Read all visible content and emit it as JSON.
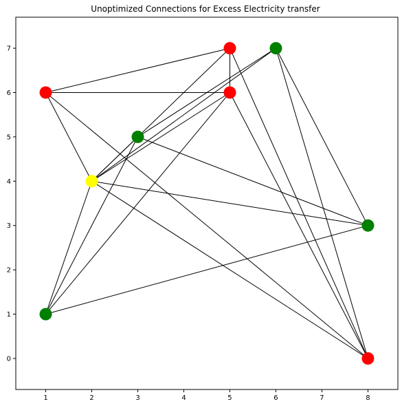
{
  "chart_data": {
    "type": "scatter",
    "title": "Unoptimized Connections for Excess Electricity transfer",
    "xlabel": "",
    "ylabel": "",
    "xlim": [
      0.35,
      8.65
    ],
    "ylim": [
      -0.7,
      7.7
    ],
    "xticks": [
      1,
      2,
      3,
      4,
      5,
      6,
      7,
      8
    ],
    "yticks": [
      0,
      1,
      2,
      3,
      4,
      5,
      6,
      7
    ],
    "grid": false,
    "nodes": [
      {
        "x": 1,
        "y": 6,
        "color": "#ff0000"
      },
      {
        "x": 5,
        "y": 7,
        "color": "#ff0000"
      },
      {
        "x": 5,
        "y": 6,
        "color": "#ff0000"
      },
      {
        "x": 8,
        "y": 0,
        "color": "#ff0000"
      },
      {
        "x": 6,
        "y": 7,
        "color": "#008000"
      },
      {
        "x": 3,
        "y": 5,
        "color": "#008000"
      },
      {
        "x": 8,
        "y": 3,
        "color": "#008000"
      },
      {
        "x": 1,
        "y": 1,
        "color": "#008000"
      },
      {
        "x": 2,
        "y": 4,
        "color": "#ffff00"
      }
    ],
    "edges": [
      [
        [
          1,
          6
        ],
        [
          5,
          7
        ]
      ],
      [
        [
          1,
          6
        ],
        [
          5,
          6
        ]
      ],
      [
        [
          1,
          6
        ],
        [
          2,
          4
        ]
      ],
      [
        [
          1,
          6
        ],
        [
          8,
          0
        ]
      ],
      [
        [
          5,
          7
        ],
        [
          5,
          6
        ]
      ],
      [
        [
          5,
          7
        ],
        [
          2,
          4
        ]
      ],
      [
        [
          5,
          7
        ],
        [
          8,
          0
        ]
      ],
      [
        [
          5,
          6
        ],
        [
          2,
          4
        ]
      ],
      [
        [
          5,
          6
        ],
        [
          1,
          1
        ]
      ],
      [
        [
          5,
          6
        ],
        [
          8,
          0
        ]
      ],
      [
        [
          6,
          7
        ],
        [
          2,
          4
        ]
      ],
      [
        [
          6,
          7
        ],
        [
          3,
          5
        ]
      ],
      [
        [
          6,
          7
        ],
        [
          8,
          3
        ]
      ],
      [
        [
          6,
          7
        ],
        [
          8,
          0
        ]
      ],
      [
        [
          3,
          5
        ],
        [
          2,
          4
        ]
      ],
      [
        [
          3,
          5
        ],
        [
          8,
          3
        ]
      ],
      [
        [
          3,
          5
        ],
        [
          1,
          1
        ]
      ],
      [
        [
          2,
          4
        ],
        [
          8,
          3
        ]
      ],
      [
        [
          2,
          4
        ],
        [
          1,
          1
        ]
      ],
      [
        [
          2,
          4
        ],
        [
          8,
          0
        ]
      ],
      [
        [
          1,
          1
        ],
        [
          8,
          3
        ]
      ]
    ],
    "colors": {
      "red": "#ff0000",
      "green": "#008000",
      "yellow": "#ffff00",
      "edge": "#000000"
    }
  }
}
